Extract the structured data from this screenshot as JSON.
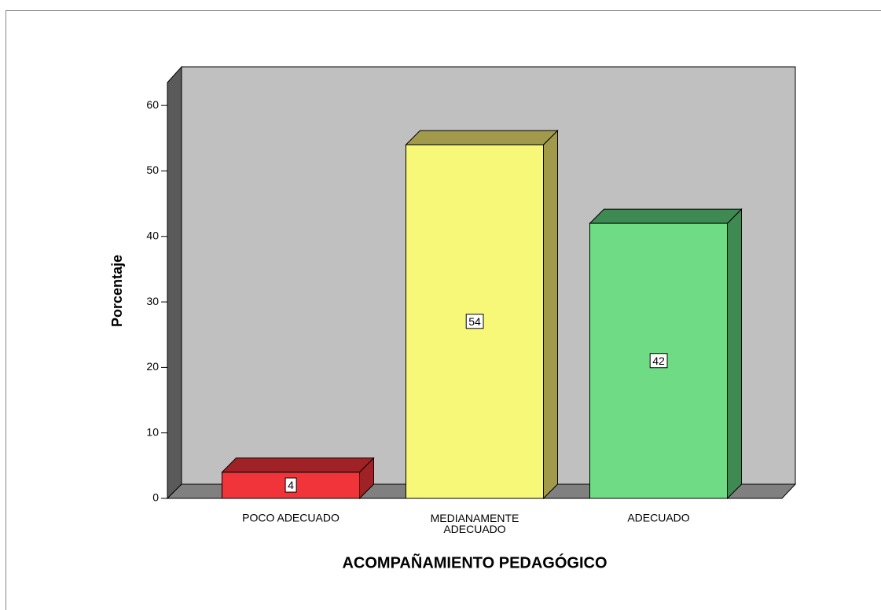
{
  "chart_data": {
    "type": "bar3d",
    "categories": [
      "POCO ADECUADO",
      "MEDIANAMENTE ADECUADO",
      "ADECUADO"
    ],
    "values": [
      4,
      54,
      42
    ],
    "colors": [
      "#f0343a",
      "#f8f878",
      "#6fdc85"
    ],
    "side_colors": [
      "#9e2226",
      "#a19a4a",
      "#3e8a52"
    ],
    "ylabel": "Porcentaje",
    "xlabel": "ACOMPAÑAMIENTO PEDAGÓGICO",
    "ylim": [
      0,
      63.5
    ],
    "yticks": [
      0,
      10,
      20,
      30,
      40,
      50,
      60
    ]
  }
}
